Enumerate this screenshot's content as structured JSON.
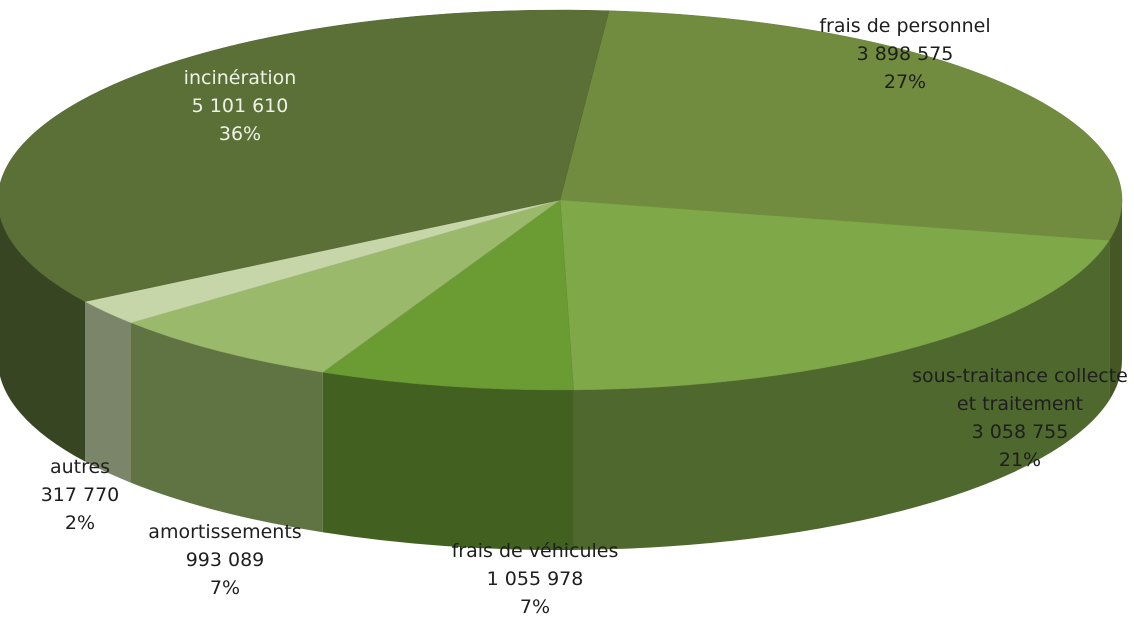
{
  "chart_data": {
    "type": "pie3d",
    "categories": [
      "frais de personnel",
      "sous-traitance collecte et traitement",
      "frais de véhicules",
      "amortissements",
      "autres",
      "incinération"
    ],
    "values": [
      3898575,
      3058755,
      1055978,
      993089,
      317770,
      5101610
    ],
    "value_labels": [
      "3 898 575",
      "3 058 755",
      "1 055 978",
      "993 089",
      "317 770",
      "5 101 610"
    ],
    "percent_labels": [
      "27%",
      "21%",
      "7%",
      "7%",
      "2%",
      "36%"
    ],
    "colors": [
      "#718c3e",
      "#7fa848",
      "#6b9c34",
      "#9bb96a",
      "#c6d6a9",
      "#5b7037"
    ]
  }
}
